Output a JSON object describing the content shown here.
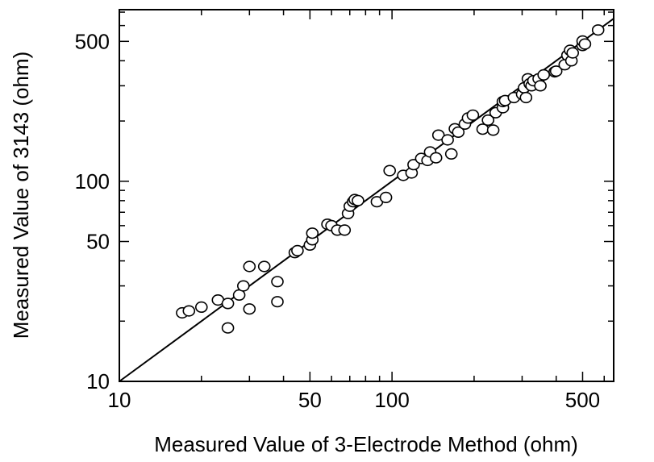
{
  "chart_data": {
    "type": "scatter",
    "title": "",
    "xlabel": "Measured Value of 3-Electrode Method (ohm)",
    "ylabel": "Measured Value of 3143 (ohm)",
    "xscale": "log",
    "yscale": "log",
    "xlim": [
      10,
      650
    ],
    "ylim": [
      10,
      720
    ],
    "grid": false,
    "legend": "none",
    "x_ticks": [
      {
        "value": 10,
        "label": "10"
      },
      {
        "value": 50,
        "label": "50"
      },
      {
        "value": 100,
        "label": "100"
      },
      {
        "value": 500,
        "label": "500"
      }
    ],
    "y_ticks": [
      {
        "value": 10,
        "label": "10"
      },
      {
        "value": 50,
        "label": "50"
      },
      {
        "value": 100,
        "label": "100"
      },
      {
        "value": 500,
        "label": "500"
      }
    ],
    "reference_line": {
      "type": "y=x",
      "from": 10,
      "to": 650
    },
    "series": [
      {
        "marker": "open-circle",
        "points": [
          [
            17,
            22
          ],
          [
            18,
            22.5
          ],
          [
            20,
            23.5
          ],
          [
            23,
            25.5
          ],
          [
            25,
            24.5
          ],
          [
            25,
            18.5
          ],
          [
            27.5,
            27
          ],
          [
            28.5,
            30
          ],
          [
            30,
            23
          ],
          [
            30,
            37.5
          ],
          [
            34,
            37.5
          ],
          [
            38,
            31.5
          ],
          [
            38,
            25
          ],
          [
            44,
            44
          ],
          [
            45,
            45
          ],
          [
            50,
            48
          ],
          [
            51,
            51
          ],
          [
            51,
            55
          ],
          [
            58,
            61
          ],
          [
            60,
            60
          ],
          [
            63,
            57
          ],
          [
            67,
            57
          ],
          [
            69,
            69
          ],
          [
            70,
            75
          ],
          [
            72,
            79
          ],
          [
            73,
            81
          ],
          [
            75,
            80
          ],
          [
            88,
            79
          ],
          [
            95,
            83
          ],
          [
            98,
            113
          ],
          [
            110,
            107
          ],
          [
            118,
            110
          ],
          [
            120,
            121
          ],
          [
            128,
            130
          ],
          [
            135,
            127
          ],
          [
            138,
            140
          ],
          [
            145,
            131
          ],
          [
            148,
            170
          ],
          [
            160,
            161
          ],
          [
            165,
            137
          ],
          [
            170,
            183
          ],
          [
            175,
            176
          ],
          [
            185,
            193
          ],
          [
            190,
            207
          ],
          [
            198,
            214
          ],
          [
            215,
            182
          ],
          [
            225,
            202
          ],
          [
            235,
            180
          ],
          [
            240,
            220
          ],
          [
            255,
            233
          ],
          [
            255,
            250
          ],
          [
            260,
            253
          ],
          [
            280,
            262
          ],
          [
            300,
            272
          ],
          [
            305,
            293
          ],
          [
            310,
            262
          ],
          [
            315,
            325
          ],
          [
            320,
            307
          ],
          [
            325,
            300
          ],
          [
            330,
            318
          ],
          [
            345,
            325
          ],
          [
            350,
            300
          ],
          [
            360,
            340
          ],
          [
            395,
            352
          ],
          [
            400,
            355
          ],
          [
            430,
            382
          ],
          [
            440,
            426
          ],
          [
            450,
            451
          ],
          [
            455,
            400
          ],
          [
            460,
            438
          ],
          [
            500,
            477
          ],
          [
            500,
            502
          ],
          [
            510,
            485
          ],
          [
            570,
            570
          ]
        ]
      }
    ]
  }
}
